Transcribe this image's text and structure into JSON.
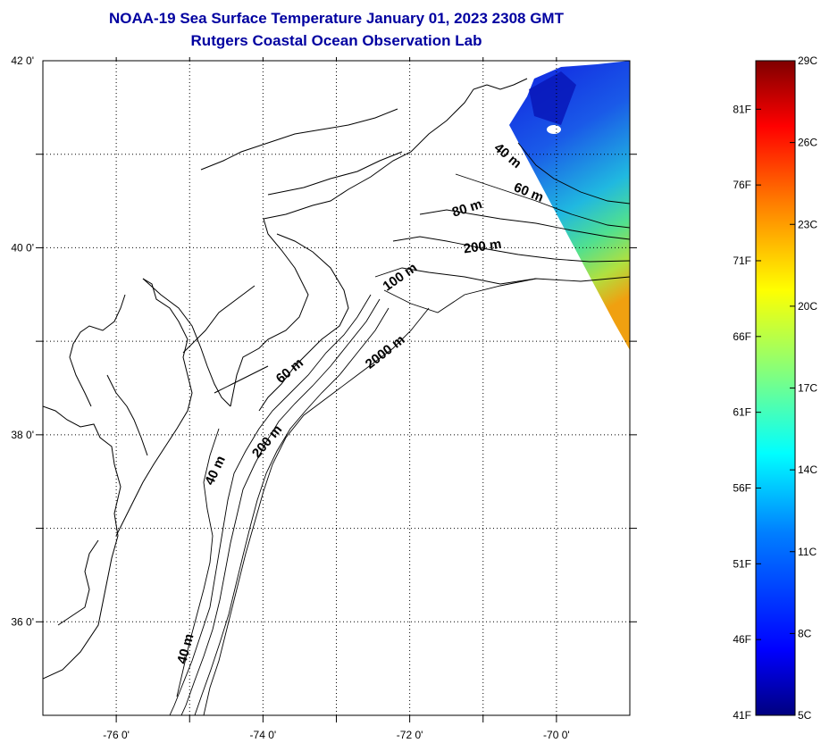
{
  "title": {
    "line1": "NOAA-19 Sea Surface Temperature January 01, 2023 2308 GMT",
    "line2": "Rutgers Coastal Ocean Observation Lab"
  },
  "map": {
    "lon_range": [
      -77,
      -69
    ],
    "lat_range": [
      35,
      42
    ],
    "lat_ticks": [
      {
        "value": 42,
        "label": "42 0'"
      },
      {
        "value": 40,
        "label": "40 0'"
      },
      {
        "value": 38,
        "label": "38 0'"
      },
      {
        "value": 36,
        "label": "36 0'"
      }
    ],
    "lon_ticks": [
      {
        "value": -76,
        "label": "-76 0'"
      },
      {
        "value": -74,
        "label": "-74 0'"
      },
      {
        "value": -72,
        "label": "-72 0'"
      },
      {
        "value": -70,
        "label": "-70 0'"
      }
    ],
    "grid": "dotted",
    "contour_labels": [
      {
        "text": "40 m",
        "lon": -70.7,
        "lat": 40.95,
        "angle": 40
      },
      {
        "text": "60 m",
        "lon": -70.4,
        "lat": 40.55,
        "angle": 22
      },
      {
        "text": "80 m",
        "lon": -71.2,
        "lat": 40.38,
        "angle": -18
      },
      {
        "text": "200 m",
        "lon": -71.0,
        "lat": 39.97,
        "angle": -8
      },
      {
        "text": "100 m",
        "lon": -72.1,
        "lat": 39.65,
        "angle": -35
      },
      {
        "text": "2000 m",
        "lon": -72.3,
        "lat": 38.85,
        "angle": -38
      },
      {
        "text": "60 m",
        "lon": -73.6,
        "lat": 38.65,
        "angle": -40
      },
      {
        "text": "200 m",
        "lon": -73.9,
        "lat": 37.9,
        "angle": -50
      },
      {
        "text": "40 m",
        "lon": -74.6,
        "lat": 37.6,
        "angle": -65
      },
      {
        "text": "40 m",
        "lon": -75.0,
        "lat": 35.7,
        "angle": -75
      }
    ]
  },
  "colorbar": {
    "celsius_labels": [
      {
        "value": 29,
        "label": "29C"
      },
      {
        "value": 26,
        "label": "26C"
      },
      {
        "value": 23,
        "label": "23C"
      },
      {
        "value": 20,
        "label": "20C"
      },
      {
        "value": 17,
        "label": "17C"
      },
      {
        "value": 14,
        "label": "14C"
      },
      {
        "value": 11,
        "label": "11C"
      },
      {
        "value": 8,
        "label": "8C"
      },
      {
        "value": 5,
        "label": "5C"
      }
    ],
    "fahrenheit_labels": [
      {
        "value": 81,
        "label": "81F"
      },
      {
        "value": 76,
        "label": "76F"
      },
      {
        "value": 71,
        "label": "71F"
      },
      {
        "value": 66,
        "label": "66F"
      },
      {
        "value": 61,
        "label": "61F"
      },
      {
        "value": 56,
        "label": "56F"
      },
      {
        "value": 51,
        "label": "51F"
      },
      {
        "value": 46,
        "label": "46F"
      },
      {
        "value": 41,
        "label": "41F"
      }
    ],
    "range_c": [
      5,
      29
    ],
    "colors": [
      "#00007f",
      "#0000ff",
      "#0080ff",
      "#00ffff",
      "#80ff80",
      "#ffff00",
      "#ff8000",
      "#ff0000",
      "#7f0000"
    ]
  }
}
